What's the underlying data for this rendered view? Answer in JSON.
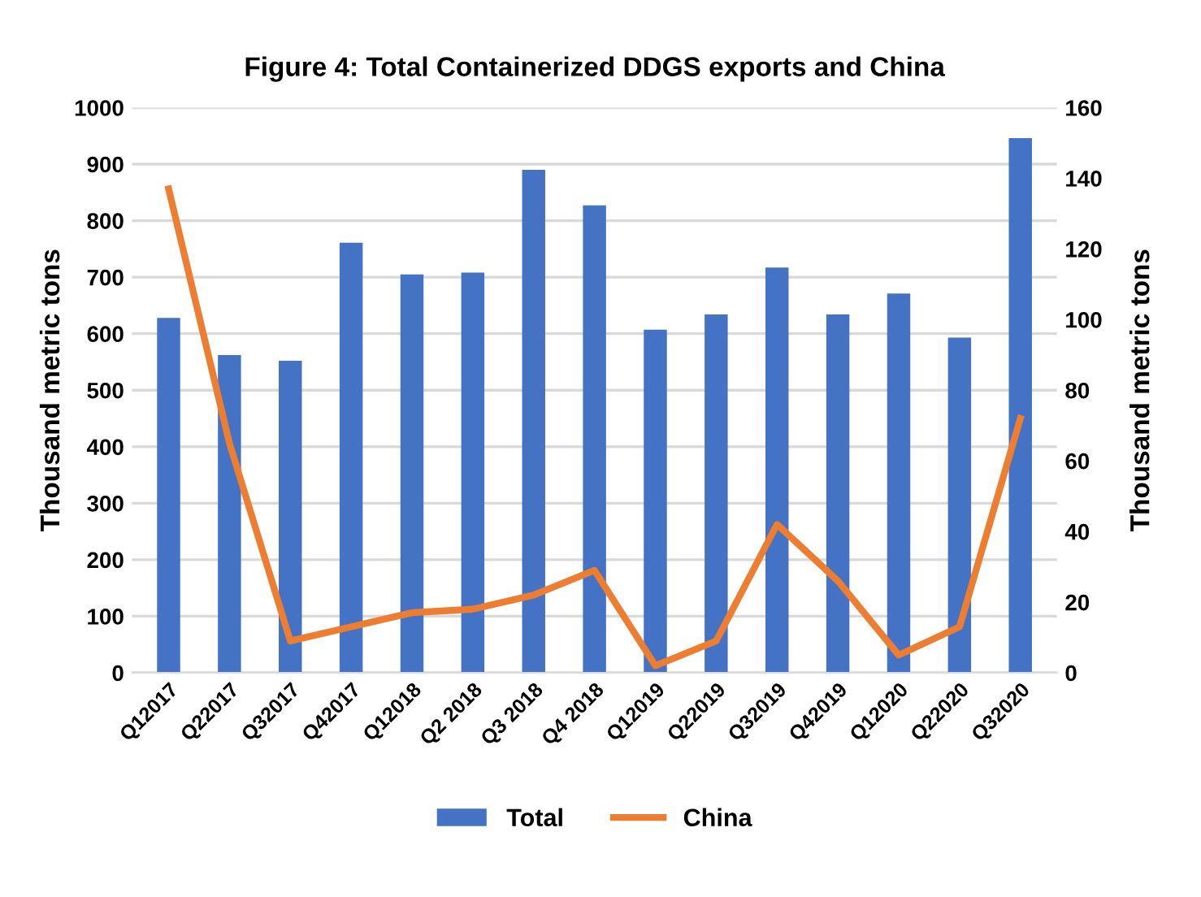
{
  "chart_data": {
    "type": "bar",
    "title": "Figure 4: Total Containerized DDGS exports and China",
    "categories": [
      "Q12017",
      "Q22017",
      "Q32017",
      "Q42017",
      "Q12018",
      "Q2 2018",
      "Q3 2018",
      "Q4 2018",
      "Q12019",
      "Q22019",
      "Q32019",
      "Q42019",
      "Q12020",
      "Q22020",
      "Q32020"
    ],
    "series": [
      {
        "name": "Total",
        "color": "#4472c4",
        "values": [
          628,
          562,
          552,
          761,
          705,
          708,
          890,
          827,
          607,
          634,
          717,
          634,
          671,
          593,
          946
        ]
      },
      {
        "name": "China",
        "type": "line",
        "axis": "y2",
        "color": "#ed7d31",
        "values": [
          137,
          65,
          9,
          13,
          17,
          18,
          22,
          29,
          2,
          9,
          42,
          26,
          5,
          13,
          72
        ]
      }
    ],
    "ylabel": "Thousand metric tons",
    "y2label": "Thousand metric tons",
    "ylim": [
      0,
      1000
    ],
    "yticks": [
      0,
      100,
      200,
      300,
      400,
      500,
      600,
      700,
      800,
      900,
      1000
    ],
    "y2lim": [
      0,
      160
    ],
    "y2ticks": [
      0,
      20,
      40,
      60,
      80,
      100,
      120,
      140,
      160
    ],
    "grid": "y",
    "legend": "bottom",
    "marker": "none",
    "line_style": "solid"
  }
}
